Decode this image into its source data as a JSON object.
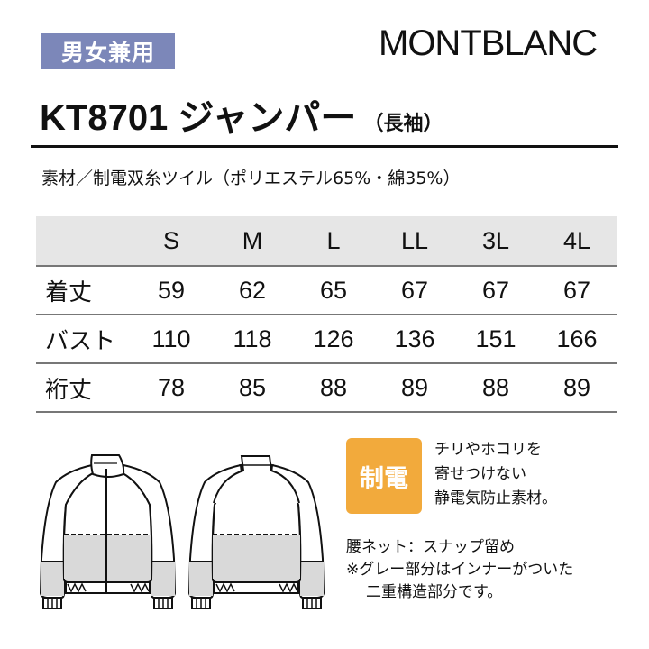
{
  "badge": "男女兼用",
  "brand": "MONTBLANC",
  "title": {
    "code": "KT8701",
    "name": "ジャンパー",
    "sleeve": "（長袖）"
  },
  "material": "素材／制電双糸ツイル（ポリエステル65%・綿35%）",
  "size_table": {
    "headers": [
      "",
      "S",
      "M",
      "L",
      "LL",
      "3L",
      "4L"
    ],
    "rows": [
      {
        "label": "着丈",
        "values": [
          "59",
          "62",
          "65",
          "67",
          "67",
          "67"
        ]
      },
      {
        "label": "バスト",
        "values": [
          "110",
          "118",
          "126",
          "136",
          "151",
          "166"
        ]
      },
      {
        "label": "裄丈",
        "values": [
          "78",
          "85",
          "88",
          "89",
          "88",
          "89"
        ]
      }
    ]
  },
  "feature": {
    "badge": "制電",
    "lines": [
      "チリやホコリを",
      "寄せつけない",
      "静電気防止素材。"
    ]
  },
  "notes": [
    "腰ネット：スナップ留め",
    "※グレー部分はインナーがついた",
    "二重構造部分です。"
  ],
  "colors": {
    "badge": "#7c87b9",
    "antistatic": "#f2aa3c",
    "table_header": "#e6e6e6",
    "inner_gray": "#d9d9d9"
  }
}
